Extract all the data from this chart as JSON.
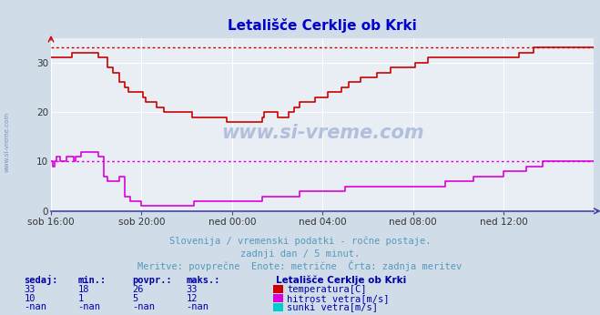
{
  "title": "Letališče Cerklje ob Krki",
  "title_color": "#0000cc",
  "bg_color": "#d0dce8",
  "plot_bg_color": "#e8eef4",
  "grid_color": "#ffffff",
  "axis_color": "#4444aa",
  "xlabel_ticks": [
    "sob 16:00",
    "sob 20:00",
    "ned 00:00",
    "ned 04:00",
    "ned 08:00",
    "ned 12:00"
  ],
  "ylabel_ticks": [
    0,
    10,
    20,
    30
  ],
  "ylim": [
    0,
    35
  ],
  "xlim": [
    0,
    288
  ],
  "temp_color": "#cc0000",
  "wind_color": "#dd00dd",
  "gust_color": "#00cccc",
  "hline_temp_max": 33,
  "hline_wind_avg": 10,
  "subtitle1": "Slovenija / vremenski podatki - ročne postaje.",
  "subtitle2": "zadnji dan / 5 minut.",
  "subtitle3": "Meritve: povprečne  Enote: metrične  Črta: zadnja meritev",
  "subtitle_color": "#5599bb",
  "legend_title": "Letališče Cerklje ob Krki",
  "legend_color": "#0000aa",
  "stats_color": "#0000aa",
  "legend_items": [
    {
      "label": "temperatura[C]",
      "color": "#cc0000"
    },
    {
      "label": "hitrost vetra[m/s]",
      "color": "#dd00dd"
    },
    {
      "label": "sunki vetra[m/s]",
      "color": "#00cccc"
    }
  ],
  "stats_headers": [
    "sedaj:",
    "min.:",
    "povpr.:",
    "maks.:"
  ],
  "stats_rows": [
    [
      "33",
      "18",
      "26",
      "33"
    ],
    [
      "10",
      "1",
      "5",
      "12"
    ],
    [
      "-nan",
      "-nan",
      "-nan",
      "-nan"
    ]
  ],
  "watermark": "www.si-vreme.com",
  "temp_data": [
    31,
    31,
    31,
    31,
    31,
    31,
    31,
    31,
    31,
    31,
    31,
    32,
    32,
    32,
    32,
    32,
    32,
    32,
    32,
    32,
    32,
    32,
    32,
    32,
    32,
    31,
    31,
    31,
    31,
    31,
    29,
    29,
    29,
    28,
    28,
    28,
    26,
    26,
    26,
    25,
    25,
    24,
    24,
    24,
    24,
    24,
    24,
    24,
    24,
    23,
    22,
    22,
    22,
    22,
    22,
    22,
    21,
    21,
    21,
    21,
    20,
    20,
    20,
    20,
    20,
    20,
    20,
    20,
    20,
    20,
    20,
    20,
    20,
    20,
    20,
    19,
    19,
    19,
    19,
    19,
    19,
    19,
    19,
    19,
    19,
    19,
    19,
    19,
    19,
    19,
    19,
    19,
    19,
    18,
    18,
    18,
    18,
    18,
    18,
    18,
    18,
    18,
    18,
    18,
    18,
    18,
    18,
    18,
    18,
    18,
    18,
    18,
    19,
    20,
    20,
    20,
    20,
    20,
    20,
    20,
    19,
    19,
    19,
    19,
    19,
    19,
    20,
    20,
    20,
    21,
    21,
    21,
    22,
    22,
    22,
    22,
    22,
    22,
    22,
    22,
    23,
    23,
    23,
    23,
    23,
    23,
    23,
    24,
    24,
    24,
    24,
    24,
    24,
    24,
    25,
    25,
    25,
    25,
    26,
    26,
    26,
    26,
    26,
    26,
    27,
    27,
    27,
    27,
    27,
    27,
    27,
    27,
    27,
    28,
    28,
    28,
    28,
    28,
    28,
    28,
    29,
    29,
    29,
    29,
    29,
    29,
    29,
    29,
    29,
    29,
    29,
    29,
    29,
    30,
    30,
    30,
    30,
    30,
    30,
    30,
    31,
    31,
    31,
    31,
    31,
    31,
    31,
    31,
    31,
    31,
    31,
    31,
    31,
    31,
    31,
    31,
    31,
    31,
    31,
    31,
    31,
    31,
    31,
    31,
    31,
    31,
    31,
    31,
    31,
    31,
    31,
    31,
    31,
    31,
    31,
    31,
    31,
    31,
    31,
    31,
    31,
    31,
    31,
    31,
    31,
    31,
    31,
    31,
    32,
    32,
    32,
    32,
    32,
    32,
    32,
    32,
    33,
    33,
    33,
    33,
    33,
    33,
    33,
    33,
    33,
    33,
    33,
    33,
    33,
    33,
    33,
    33,
    33,
    33,
    33,
    33,
    33,
    33,
    33,
    33,
    33,
    33,
    33,
    33,
    33,
    33,
    33,
    33,
    33
  ],
  "wind_data": [
    10,
    9,
    10,
    11,
    11,
    10,
    10,
    10,
    11,
    11,
    11,
    11,
    10,
    11,
    11,
    11,
    12,
    12,
    12,
    12,
    12,
    12,
    12,
    12,
    12,
    11,
    11,
    11,
    7,
    7,
    6,
    6,
    6,
    6,
    6,
    6,
    7,
    7,
    7,
    3,
    3,
    3,
    2,
    2,
    2,
    2,
    2,
    2,
    1,
    1,
    1,
    1,
    1,
    1,
    1,
    1,
    1,
    1,
    1,
    1,
    1,
    1,
    1,
    1,
    1,
    1,
    1,
    1,
    1,
    1,
    1,
    1,
    1,
    1,
    1,
    1,
    2,
    2,
    2,
    2,
    2,
    2,
    2,
    2,
    2,
    2,
    2,
    2,
    2,
    2,
    2,
    2,
    2,
    2,
    2,
    2,
    2,
    2,
    2,
    2,
    2,
    2,
    2,
    2,
    2,
    2,
    2,
    2,
    2,
    2,
    2,
    2,
    3,
    3,
    3,
    3,
    3,
    3,
    3,
    3,
    3,
    3,
    3,
    3,
    3,
    3,
    3,
    3,
    3,
    3,
    3,
    3,
    4,
    4,
    4,
    4,
    4,
    4,
    4,
    4,
    4,
    4,
    4,
    4,
    4,
    4,
    4,
    4,
    4,
    4,
    4,
    4,
    4,
    4,
    4,
    4,
    5,
    5,
    5,
    5,
    5,
    5,
    5,
    5,
    5,
    5,
    5,
    5,
    5,
    5,
    5,
    5,
    5,
    5,
    5,
    5,
    5,
    5,
    5,
    5,
    5,
    5,
    5,
    5,
    5,
    5,
    5,
    5,
    5,
    5,
    5,
    5,
    5,
    5,
    5,
    5,
    5,
    5,
    5,
    5,
    5,
    5,
    5,
    5,
    5,
    5,
    5,
    5,
    5,
    6,
    6,
    6,
    6,
    6,
    6,
    6,
    6,
    6,
    6,
    6,
    6,
    6,
    6,
    6,
    7,
    7,
    7,
    7,
    7,
    7,
    7,
    7,
    7,
    7,
    7,
    7,
    7,
    7,
    7,
    7,
    8,
    8,
    8,
    8,
    8,
    8,
    8,
    8,
    8,
    8,
    8,
    8,
    9,
    9,
    9,
    9,
    9,
    9,
    9,
    9,
    9,
    10,
    10,
    10,
    10,
    10,
    10,
    10,
    10,
    10,
    10,
    10,
    10,
    10,
    10,
    10,
    10,
    10,
    10,
    10,
    10,
    10,
    10,
    10,
    10,
    10,
    10,
    10,
    10
  ]
}
